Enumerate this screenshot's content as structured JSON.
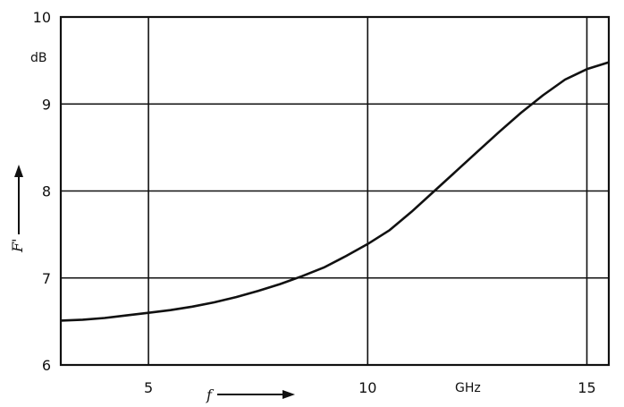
{
  "chart_data": {
    "type": "line",
    "xlim": [
      3.0,
      15.5
    ],
    "ylim": [
      6,
      10
    ],
    "x_ticks": [
      5,
      10,
      15
    ],
    "x_tick_labels": [
      "5",
      "10",
      "15"
    ],
    "y_ticks": [
      6,
      7,
      8,
      9,
      10
    ],
    "y_tick_labels": [
      "6",
      "7",
      "8",
      "9",
      "10"
    ],
    "x_unit": "GHz",
    "y_unit": "dB",
    "xlabel": "f",
    "ylabel": "F'",
    "grid": true,
    "series": [
      {
        "x": [
          3.0,
          3.5,
          4.0,
          4.5,
          5.0,
          5.5,
          6.0,
          6.5,
          7.0,
          7.5,
          8.0,
          8.5,
          9.0,
          9.5,
          10.0,
          10.5,
          11.0,
          11.5,
          12.0,
          12.5,
          13.0,
          13.5,
          14.0,
          14.5,
          15.0,
          15.5
        ],
        "y": [
          6.51,
          6.52,
          6.54,
          6.57,
          6.6,
          6.63,
          6.67,
          6.72,
          6.78,
          6.85,
          6.93,
          7.02,
          7.12,
          7.25,
          7.39,
          7.55,
          7.76,
          7.99,
          8.22,
          8.45,
          8.68,
          8.9,
          9.1,
          9.28,
          9.4,
          9.48
        ]
      }
    ]
  }
}
